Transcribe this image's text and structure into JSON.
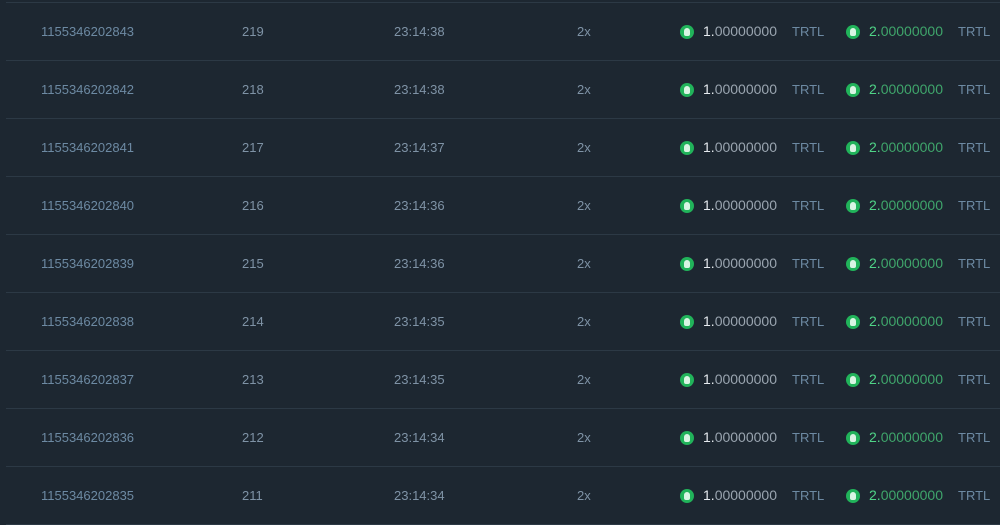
{
  "rows": [
    {
      "id": "1155346202843",
      "block": "219",
      "time": "23:14:38",
      "multiplier": "2x",
      "bet_int": "1.",
      "bet_dec": "00000000",
      "bet_unit": "TRTL",
      "payout_int": "2.",
      "payout_dec": "00000000",
      "payout_unit": "TRTL"
    },
    {
      "id": "1155346202842",
      "block": "218",
      "time": "23:14:38",
      "multiplier": "2x",
      "bet_int": "1.",
      "bet_dec": "00000000",
      "bet_unit": "TRTL",
      "payout_int": "2.",
      "payout_dec": "00000000",
      "payout_unit": "TRTL"
    },
    {
      "id": "1155346202841",
      "block": "217",
      "time": "23:14:37",
      "multiplier": "2x",
      "bet_int": "1.",
      "bet_dec": "00000000",
      "bet_unit": "TRTL",
      "payout_int": "2.",
      "payout_dec": "00000000",
      "payout_unit": "TRTL"
    },
    {
      "id": "1155346202840",
      "block": "216",
      "time": "23:14:36",
      "multiplier": "2x",
      "bet_int": "1.",
      "bet_dec": "00000000",
      "bet_unit": "TRTL",
      "payout_int": "2.",
      "payout_dec": "00000000",
      "payout_unit": "TRTL"
    },
    {
      "id": "1155346202839",
      "block": "215",
      "time": "23:14:36",
      "multiplier": "2x",
      "bet_int": "1.",
      "bet_dec": "00000000",
      "bet_unit": "TRTL",
      "payout_int": "2.",
      "payout_dec": "00000000",
      "payout_unit": "TRTL"
    },
    {
      "id": "1155346202838",
      "block": "214",
      "time": "23:14:35",
      "multiplier": "2x",
      "bet_int": "1.",
      "bet_dec": "00000000",
      "bet_unit": "TRTL",
      "payout_int": "2.",
      "payout_dec": "00000000",
      "payout_unit": "TRTL"
    },
    {
      "id": "1155346202837",
      "block": "213",
      "time": "23:14:35",
      "multiplier": "2x",
      "bet_int": "1.",
      "bet_dec": "00000000",
      "bet_unit": "TRTL",
      "payout_int": "2.",
      "payout_dec": "00000000",
      "payout_unit": "TRTL"
    },
    {
      "id": "1155346202836",
      "block": "212",
      "time": "23:14:34",
      "multiplier": "2x",
      "bet_int": "1.",
      "bet_dec": "00000000",
      "bet_unit": "TRTL",
      "payout_int": "2.",
      "payout_dec": "00000000",
      "payout_unit": "TRTL"
    },
    {
      "id": "1155346202835",
      "block": "211",
      "time": "23:14:34",
      "multiplier": "2x",
      "bet_int": "1.",
      "bet_dec": "00000000",
      "bet_unit": "TRTL",
      "payout_int": "2.",
      "payout_dec": "00000000",
      "payout_unit": "TRTL"
    }
  ],
  "icons": {
    "coin": "turtlecoin-icon"
  },
  "colors": {
    "background": "#1d2731",
    "payout": "#4fd487",
    "coin": "#21b35a"
  }
}
